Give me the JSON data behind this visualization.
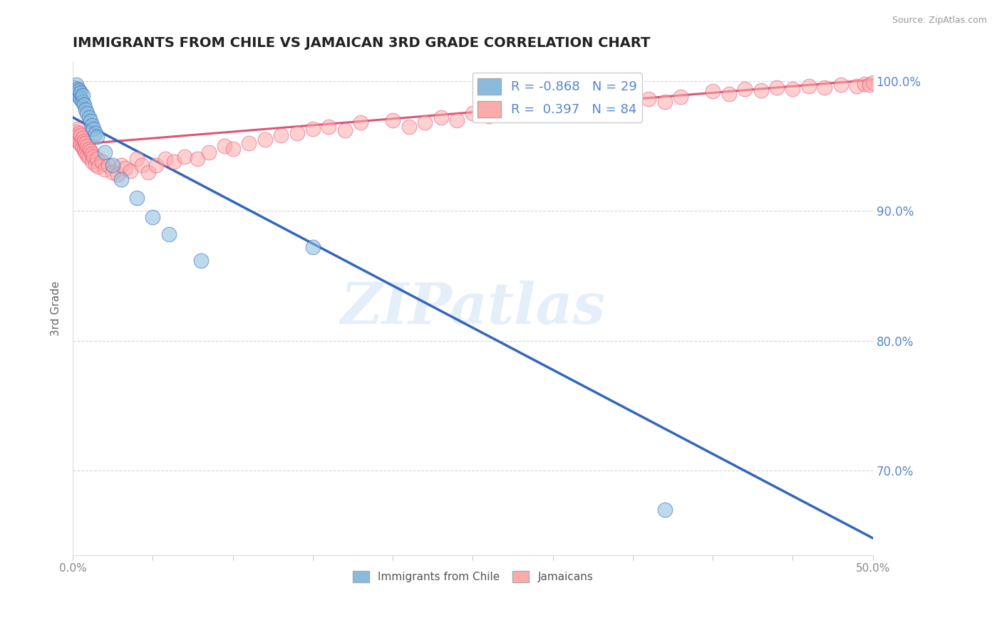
{
  "title": "IMMIGRANTS FROM CHILE VS JAMAICAN 3RD GRADE CORRELATION CHART",
  "source": "Source: ZipAtlas.com",
  "ylabel": "3rd Grade",
  "xlim": [
    0.0,
    0.5
  ],
  "ylim": [
    0.635,
    1.015
  ],
  "xtick_positions": [
    0.0,
    0.05,
    0.1,
    0.15,
    0.2,
    0.25,
    0.3,
    0.35,
    0.4,
    0.45,
    0.5
  ],
  "xtick_labels_show": {
    "0.0": "0.0%",
    "0.5": "50.0%"
  },
  "yticks": [
    0.7,
    0.8,
    0.9,
    1.0
  ],
  "ytick_labels": [
    "70.0%",
    "80.0%",
    "90.0%",
    "100.0%"
  ],
  "blue_R": -0.868,
  "blue_N": 29,
  "pink_R": 0.397,
  "pink_N": 84,
  "blue_color": "#88BBDD",
  "pink_color": "#FFAAAA",
  "blue_line_color": "#3366BB",
  "pink_line_color": "#DD5577",
  "watermark": "ZIPatlas",
  "background_color": "#FFFFFF",
  "grid_color": "#CCCCCC",
  "axis_label_color": "#5588CC",
  "title_color": "#222222",
  "blue_line_x0": 0.0,
  "blue_line_y0": 0.972,
  "blue_line_x1": 0.5,
  "blue_line_y1": 0.648,
  "pink_line_x0": 0.0,
  "pink_line_y0": 0.951,
  "pink_line_x1": 0.5,
  "pink_line_y1": 1.001,
  "blue_pts_x": [
    0.001,
    0.002,
    0.002,
    0.003,
    0.003,
    0.004,
    0.004,
    0.005,
    0.005,
    0.006,
    0.006,
    0.007,
    0.008,
    0.009,
    0.01,
    0.011,
    0.012,
    0.013,
    0.014,
    0.015,
    0.02,
    0.025,
    0.03,
    0.04,
    0.05,
    0.06,
    0.08,
    0.15,
    0.37
  ],
  "blue_pts_y": [
    0.995,
    0.992,
    0.997,
    0.99,
    0.994,
    0.988,
    0.993,
    0.986,
    0.991,
    0.984,
    0.989,
    0.982,
    0.978,
    0.975,
    0.972,
    0.969,
    0.966,
    0.963,
    0.96,
    0.957,
    0.945,
    0.935,
    0.924,
    0.91,
    0.895,
    0.882,
    0.862,
    0.872,
    0.67
  ],
  "pink_pts_x": [
    0.001,
    0.002,
    0.002,
    0.003,
    0.003,
    0.004,
    0.004,
    0.005,
    0.005,
    0.006,
    0.006,
    0.007,
    0.007,
    0.008,
    0.008,
    0.009,
    0.009,
    0.01,
    0.01,
    0.011,
    0.012,
    0.012,
    0.013,
    0.014,
    0.015,
    0.016,
    0.018,
    0.02,
    0.022,
    0.025,
    0.028,
    0.03,
    0.033,
    0.036,
    0.04,
    0.043,
    0.047,
    0.052,
    0.058,
    0.063,
    0.07,
    0.078,
    0.085,
    0.095,
    0.1,
    0.11,
    0.12,
    0.13,
    0.14,
    0.15,
    0.16,
    0.17,
    0.18,
    0.2,
    0.21,
    0.22,
    0.23,
    0.24,
    0.25,
    0.26,
    0.27,
    0.28,
    0.29,
    0.3,
    0.31,
    0.32,
    0.33,
    0.34,
    0.36,
    0.37,
    0.38,
    0.4,
    0.41,
    0.42,
    0.43,
    0.44,
    0.45,
    0.46,
    0.47,
    0.48,
    0.49,
    0.495,
    0.498,
    0.5
  ],
  "pink_pts_y": [
    0.958,
    0.961,
    0.955,
    0.963,
    0.957,
    0.96,
    0.953,
    0.958,
    0.951,
    0.956,
    0.949,
    0.954,
    0.947,
    0.952,
    0.945,
    0.95,
    0.943,
    0.948,
    0.941,
    0.946,
    0.944,
    0.938,
    0.942,
    0.936,
    0.94,
    0.934,
    0.938,
    0.932,
    0.935,
    0.93,
    0.928,
    0.935,
    0.933,
    0.931,
    0.94,
    0.935,
    0.93,
    0.935,
    0.94,
    0.938,
    0.942,
    0.94,
    0.945,
    0.95,
    0.948,
    0.952,
    0.955,
    0.958,
    0.96,
    0.963,
    0.965,
    0.962,
    0.968,
    0.97,
    0.965,
    0.968,
    0.972,
    0.97,
    0.975,
    0.973,
    0.978,
    0.976,
    0.98,
    0.978,
    0.982,
    0.98,
    0.984,
    0.982,
    0.986,
    0.984,
    0.988,
    0.992,
    0.99,
    0.994,
    0.993,
    0.995,
    0.994,
    0.996,
    0.995,
    0.997,
    0.996,
    0.998,
    0.997,
    0.999
  ]
}
